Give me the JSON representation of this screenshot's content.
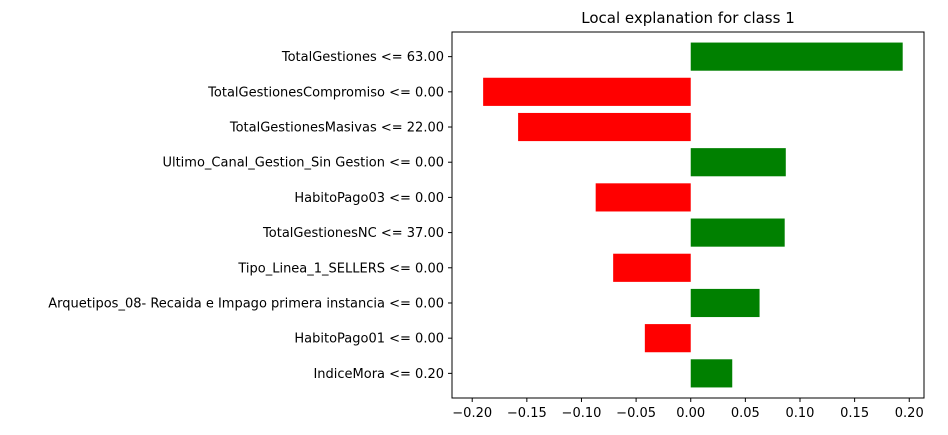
{
  "chart_data": {
    "type": "bar",
    "orientation": "horizontal",
    "title": "Local explanation for class 1",
    "xlabel": "",
    "ylabel": "",
    "xlim": [
      -0.2185,
      0.2135
    ],
    "xticks": [
      -0.2,
      -0.15,
      -0.1,
      -0.05,
      0.0,
      0.05,
      0.1,
      0.15,
      0.2
    ],
    "xtick_labels": [
      "−0.20",
      "−0.15",
      "−0.10",
      "−0.05",
      "0.00",
      "0.05",
      "0.10",
      "0.15",
      "0.20"
    ],
    "categories": [
      "TotalGestiones <= 63.00",
      "TotalGestionesCompromiso <= 0.00",
      "TotalGestionesMasivas <= 22.00",
      "Ultimo_Canal_Gestion_Sin Gestion <= 0.00",
      "HabitoPago03 <= 0.00",
      "TotalGestionesNC <= 37.00",
      "Tipo_Linea_1_SELLERS <= 0.00",
      "Arquetipos_08- Recaida e Impago primera instancia <= 0.00",
      "HabitoPago01 <= 0.00",
      "IndiceMora <= 0.20"
    ],
    "values": [
      0.194,
      -0.19,
      -0.158,
      0.087,
      -0.087,
      0.086,
      -0.071,
      0.063,
      -0.042,
      0.038
    ],
    "colors": {
      "positive": "#008000",
      "negative": "#ff0000"
    },
    "grid": false,
    "legend": "none"
  }
}
